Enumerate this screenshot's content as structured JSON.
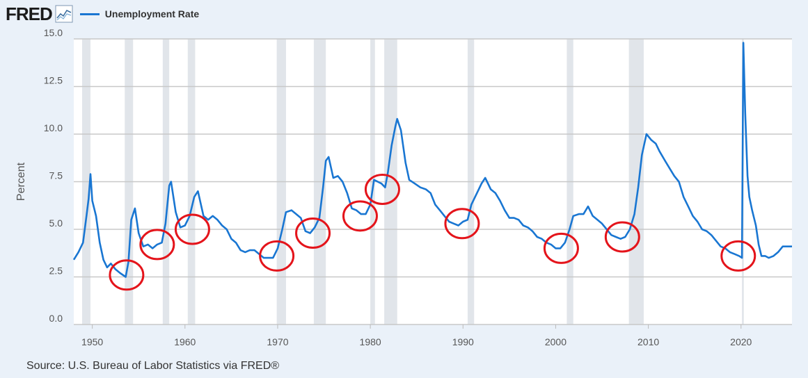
{
  "header": {
    "logo_text": "FRED",
    "legend_label": "Unemployment Rate",
    "series_color": "#1976d2"
  },
  "source": "Source: U.S. Bureau of Labor Statistics via FRED®",
  "chart_data": {
    "type": "line",
    "ylabel": "Percent",
    "xlim": [
      1948.0,
      2025.5
    ],
    "ylim": [
      0,
      15
    ],
    "yticks": [
      "0.0",
      "2.5",
      "5.0",
      "7.5",
      "10.0",
      "12.5",
      "15.0"
    ],
    "xticks": [
      "1950",
      "1960",
      "1970",
      "1980",
      "1990",
      "2000",
      "2010",
      "2020"
    ],
    "grid": true,
    "legend_position": "top-left",
    "recessions": [
      [
        1948.9,
        1949.8
      ],
      [
        1953.5,
        1954.4
      ],
      [
        1957.6,
        1958.3
      ],
      [
        1960.3,
        1961.1
      ],
      [
        1969.9,
        1970.9
      ],
      [
        1973.9,
        1975.2
      ],
      [
        1980.0,
        1980.5
      ],
      [
        1981.5,
        1982.9
      ],
      [
        1990.5,
        1991.2
      ],
      [
        2001.2,
        2001.9
      ],
      [
        2007.9,
        2009.5
      ],
      [
        2020.1,
        2020.3
      ]
    ],
    "highlighted_troughs": [
      {
        "year": 1953.7,
        "value": 2.6
      },
      {
        "year": 1957.0,
        "value": 4.2
      },
      {
        "year": 1960.8,
        "value": 5.0
      },
      {
        "year": 1969.9,
        "value": 3.6
      },
      {
        "year": 1973.8,
        "value": 4.8
      },
      {
        "year": 1978.9,
        "value": 5.7
      },
      {
        "year": 1981.3,
        "value": 7.1
      },
      {
        "year": 1989.9,
        "value": 5.3
      },
      {
        "year": 2000.6,
        "value": 4.0
      },
      {
        "year": 2007.2,
        "value": 4.6
      },
      {
        "year": 2019.7,
        "value": 3.6
      }
    ],
    "series": [
      {
        "name": "Unemployment Rate",
        "color": "#1976d2",
        "points": [
          [
            1948.0,
            3.4
          ],
          [
            1948.5,
            3.8
          ],
          [
            1949.0,
            4.3
          ],
          [
            1949.4,
            5.8
          ],
          [
            1949.6,
            6.6
          ],
          [
            1949.8,
            7.9
          ],
          [
            1950.0,
            6.5
          ],
          [
            1950.4,
            5.7
          ],
          [
            1950.8,
            4.3
          ],
          [
            1951.2,
            3.4
          ],
          [
            1951.6,
            3.0
          ],
          [
            1952.0,
            3.2
          ],
          [
            1952.5,
            2.9
          ],
          [
            1953.0,
            2.7
          ],
          [
            1953.6,
            2.5
          ],
          [
            1953.9,
            3.3
          ],
          [
            1954.2,
            5.5
          ],
          [
            1954.6,
            6.1
          ],
          [
            1955.0,
            4.8
          ],
          [
            1955.5,
            4.1
          ],
          [
            1956.0,
            4.2
          ],
          [
            1956.5,
            4.0
          ],
          [
            1957.0,
            4.2
          ],
          [
            1957.5,
            4.3
          ],
          [
            1957.9,
            5.3
          ],
          [
            1958.3,
            7.3
          ],
          [
            1958.5,
            7.5
          ],
          [
            1959.0,
            5.9
          ],
          [
            1959.5,
            5.1
          ],
          [
            1960.0,
            5.2
          ],
          [
            1960.5,
            5.7
          ],
          [
            1961.0,
            6.7
          ],
          [
            1961.4,
            7.0
          ],
          [
            1962.0,
            5.7
          ],
          [
            1962.5,
            5.5
          ],
          [
            1963.0,
            5.7
          ],
          [
            1963.5,
            5.5
          ],
          [
            1964.0,
            5.2
          ],
          [
            1964.5,
            5.0
          ],
          [
            1965.0,
            4.5
          ],
          [
            1965.5,
            4.3
          ],
          [
            1966.0,
            3.9
          ],
          [
            1966.5,
            3.8
          ],
          [
            1967.0,
            3.9
          ],
          [
            1967.5,
            3.9
          ],
          [
            1968.0,
            3.7
          ],
          [
            1968.5,
            3.5
          ],
          [
            1969.0,
            3.5
          ],
          [
            1969.5,
            3.5
          ],
          [
            1970.0,
            4.0
          ],
          [
            1970.5,
            5.0
          ],
          [
            1970.9,
            5.9
          ],
          [
            1971.5,
            6.0
          ],
          [
            1972.0,
            5.8
          ],
          [
            1972.5,
            5.6
          ],
          [
            1973.0,
            4.9
          ],
          [
            1973.5,
            4.8
          ],
          [
            1974.0,
            5.1
          ],
          [
            1974.5,
            5.6
          ],
          [
            1974.9,
            7.2
          ],
          [
            1975.2,
            8.6
          ],
          [
            1975.5,
            8.8
          ],
          [
            1976.0,
            7.7
          ],
          [
            1976.5,
            7.8
          ],
          [
            1977.0,
            7.5
          ],
          [
            1977.5,
            6.9
          ],
          [
            1978.0,
            6.1
          ],
          [
            1978.5,
            6.0
          ],
          [
            1979.0,
            5.8
          ],
          [
            1979.5,
            5.8
          ],
          [
            1980.0,
            6.3
          ],
          [
            1980.4,
            7.6
          ],
          [
            1980.8,
            7.5
          ],
          [
            1981.2,
            7.4
          ],
          [
            1981.6,
            7.2
          ],
          [
            1981.9,
            8.0
          ],
          [
            1982.3,
            9.4
          ],
          [
            1982.7,
            10.4
          ],
          [
            1982.9,
            10.8
          ],
          [
            1983.3,
            10.2
          ],
          [
            1983.8,
            8.5
          ],
          [
            1984.2,
            7.6
          ],
          [
            1984.8,
            7.4
          ],
          [
            1985.4,
            7.2
          ],
          [
            1986.0,
            7.1
          ],
          [
            1986.5,
            6.9
          ],
          [
            1987.0,
            6.3
          ],
          [
            1987.5,
            6.0
          ],
          [
            1988.0,
            5.7
          ],
          [
            1988.5,
            5.4
          ],
          [
            1989.0,
            5.3
          ],
          [
            1989.5,
            5.2
          ],
          [
            1990.0,
            5.4
          ],
          [
            1990.5,
            5.5
          ],
          [
            1990.9,
            6.3
          ],
          [
            1991.5,
            6.9
          ],
          [
            1992.0,
            7.4
          ],
          [
            1992.4,
            7.7
          ],
          [
            1993.0,
            7.1
          ],
          [
            1993.5,
            6.9
          ],
          [
            1994.0,
            6.5
          ],
          [
            1994.5,
            6.0
          ],
          [
            1995.0,
            5.6
          ],
          [
            1995.5,
            5.6
          ],
          [
            1996.0,
            5.5
          ],
          [
            1996.5,
            5.2
          ],
          [
            1997.0,
            5.1
          ],
          [
            1997.5,
            4.9
          ],
          [
            1998.0,
            4.6
          ],
          [
            1998.5,
            4.5
          ],
          [
            1999.0,
            4.3
          ],
          [
            1999.5,
            4.2
          ],
          [
            2000.0,
            4.0
          ],
          [
            2000.5,
            4.0
          ],
          [
            2001.0,
            4.3
          ],
          [
            2001.5,
            5.0
          ],
          [
            2001.9,
            5.7
          ],
          [
            2002.5,
            5.8
          ],
          [
            2003.0,
            5.8
          ],
          [
            2003.5,
            6.2
          ],
          [
            2004.0,
            5.7
          ],
          [
            2004.5,
            5.5
          ],
          [
            2005.0,
            5.3
          ],
          [
            2005.5,
            5.0
          ],
          [
            2006.0,
            4.7
          ],
          [
            2006.5,
            4.6
          ],
          [
            2007.0,
            4.5
          ],
          [
            2007.5,
            4.6
          ],
          [
            2008.0,
            5.0
          ],
          [
            2008.5,
            5.8
          ],
          [
            2008.9,
            7.2
          ],
          [
            2009.3,
            8.9
          ],
          [
            2009.8,
            10.0
          ],
          [
            2010.3,
            9.7
          ],
          [
            2010.8,
            9.5
          ],
          [
            2011.2,
            9.1
          ],
          [
            2011.8,
            8.6
          ],
          [
            2012.3,
            8.2
          ],
          [
            2012.8,
            7.8
          ],
          [
            2013.3,
            7.5
          ],
          [
            2013.8,
            6.7
          ],
          [
            2014.3,
            6.2
          ],
          [
            2014.8,
            5.7
          ],
          [
            2015.3,
            5.4
          ],
          [
            2015.8,
            5.0
          ],
          [
            2016.3,
            4.9
          ],
          [
            2016.8,
            4.7
          ],
          [
            2017.3,
            4.4
          ],
          [
            2017.8,
            4.1
          ],
          [
            2018.3,
            4.0
          ],
          [
            2018.8,
            3.8
          ],
          [
            2019.3,
            3.7
          ],
          [
            2019.8,
            3.6
          ],
          [
            2020.1,
            3.5
          ],
          [
            2020.25,
            14.8
          ],
          [
            2020.45,
            11.1
          ],
          [
            2020.7,
            7.8
          ],
          [
            2020.9,
            6.7
          ],
          [
            2021.2,
            6.0
          ],
          [
            2021.6,
            5.2
          ],
          [
            2021.9,
            4.2
          ],
          [
            2022.2,
            3.6
          ],
          [
            2022.6,
            3.6
          ],
          [
            2023.0,
            3.5
          ],
          [
            2023.5,
            3.6
          ],
          [
            2024.0,
            3.8
          ],
          [
            2024.5,
            4.1
          ],
          [
            2025.0,
            4.1
          ],
          [
            2025.5,
            4.1
          ]
        ]
      }
    ]
  }
}
